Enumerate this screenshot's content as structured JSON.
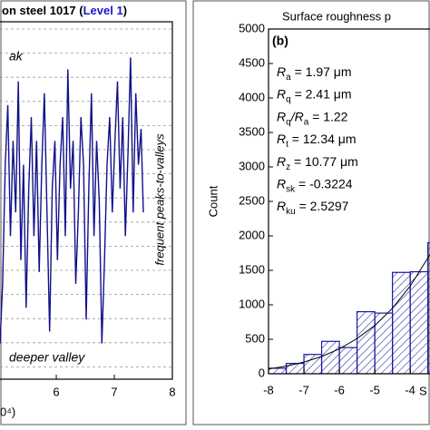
{
  "chart_data": [
    {
      "type": "line",
      "title_parts": [
        "on steel 1017 (",
        "Level 1",
        ")"
      ],
      "title_colors": [
        "#000000",
        "#1a1ad0",
        "#000000"
      ],
      "annotations": [
        "ak",
        "frequent peaks-to-valleys",
        "deeper valley"
      ],
      "annotation_color": "#d01010",
      "x_label": "0⁴)",
      "xlim": [
        5.03,
        8
      ],
      "xticks": [
        6,
        7,
        8
      ],
      "ylim": [
        0,
        15
      ],
      "series": [
        {
          "color": "#10108a",
          "x": [
            5.03,
            5.075,
            5.12,
            5.165,
            5.21,
            5.255,
            5.3,
            5.345,
            5.39,
            5.435,
            5.48,
            5.525,
            5.57,
            5.615,
            5.66,
            5.705,
            5.75,
            5.795,
            5.84,
            5.885,
            5.93,
            5.975,
            6.02,
            6.065,
            6.11,
            6.155,
            6.2,
            6.245,
            6.29,
            6.335,
            6.38,
            6.425,
            6.47,
            6.515,
            6.56,
            6.605,
            6.65,
            6.695,
            6.74,
            6.785,
            6.83,
            6.875,
            6.92,
            6.965,
            7.01,
            7.055,
            7.1,
            7.145,
            7.19,
            7.235,
            7.28,
            7.325,
            7.37,
            7.415,
            7.46,
            7.5
          ],
          "values": [
            1.5,
            4,
            9,
            11.5,
            6,
            10,
            7,
            12.5,
            5,
            9,
            3,
            8,
            11,
            6,
            10,
            4.5,
            9,
            12,
            7,
            2,
            8,
            10,
            5,
            9,
            11,
            6,
            13,
            8,
            10,
            4,
            7,
            11,
            9,
            2.5,
            8,
            12,
            6,
            10,
            7.5,
            1.5,
            5,
            9,
            11,
            7,
            10,
            12.5,
            8,
            11,
            6,
            9.5,
            13.5,
            7,
            12,
            9,
            10.5,
            7
          ]
        }
      ]
    },
    {
      "type": "histogram",
      "title": "Surface roughness p",
      "panel_label": "(b)",
      "panel_label_color": "#7a1a9a",
      "stats": [
        [
          "R",
          "a",
          " = 1.97 μm"
        ],
        [
          "R",
          "q",
          " = 2.41 μm"
        ],
        [
          "R",
          "q",
          "/R",
          "a",
          " = 1.22"
        ],
        [
          "R",
          "t",
          " = 12.34 μm"
        ],
        [
          "R",
          "z",
          " = 10.77 μm"
        ],
        [
          "R",
          "sk",
          " = -0.3224"
        ],
        [
          "R",
          "ku",
          " = 2.5297"
        ]
      ],
      "x_label": "S",
      "y_label": "Count",
      "xlim": [
        -8,
        -3.44
      ],
      "xticks": [
        -8,
        -7,
        -6,
        -5,
        -4
      ],
      "ylim": [
        0,
        5000
      ],
      "yticks": [
        0,
        500,
        1000,
        1500,
        2000,
        2500,
        3000,
        3500,
        4000,
        4500,
        5000
      ],
      "bins": [
        -8,
        -7.5,
        -7,
        -6.5,
        -6,
        -5.5,
        -5,
        -4.5,
        -4,
        -3.5,
        -3
      ],
      "values": [
        80,
        150,
        280,
        470,
        380,
        900,
        880,
        1470,
        1480,
        1900
      ],
      "color": "#1a1aa0",
      "fit": {
        "x": [
          -8,
          -7.5,
          -7,
          -6.5,
          -6,
          -5.5,
          -5,
          -4.5,
          -4,
          -3.5,
          -3.45
        ],
        "values": [
          70,
          110,
          170,
          250,
          360,
          510,
          700,
          950,
          1270,
          1680,
          1730
        ],
        "color": "#000000"
      }
    }
  ]
}
